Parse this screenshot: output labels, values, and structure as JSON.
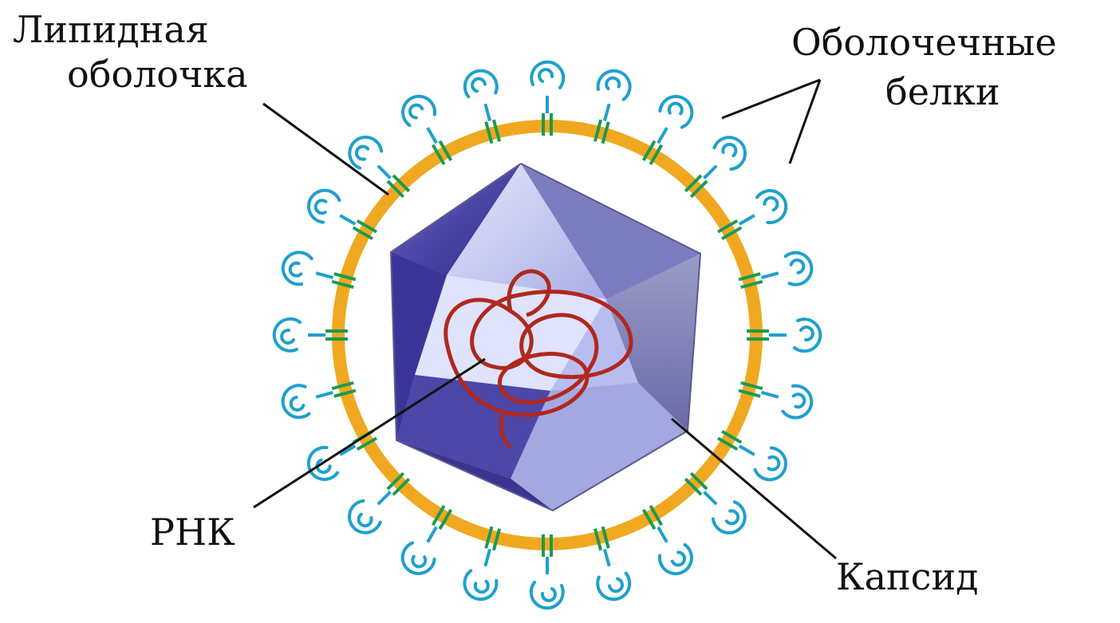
{
  "labels": {
    "lipid_line1": "Липидная",
    "lipid_line2": "оболочка",
    "env_line1": "Оболочечные",
    "env_line2": "белки",
    "rna": "РНК",
    "capsid": "Капсид"
  },
  "colors": {
    "envelope": "#f0a820",
    "spike_head": "#1fa0cc",
    "spike_stem": "#1c9a52",
    "capsid_dark": "#4a3fa0",
    "capsid_light": "#c9ccf2",
    "rna": "#b0281e",
    "leader": "#111111"
  },
  "spikes": {
    "count": 24,
    "icon": "envelope-protein-icon"
  }
}
